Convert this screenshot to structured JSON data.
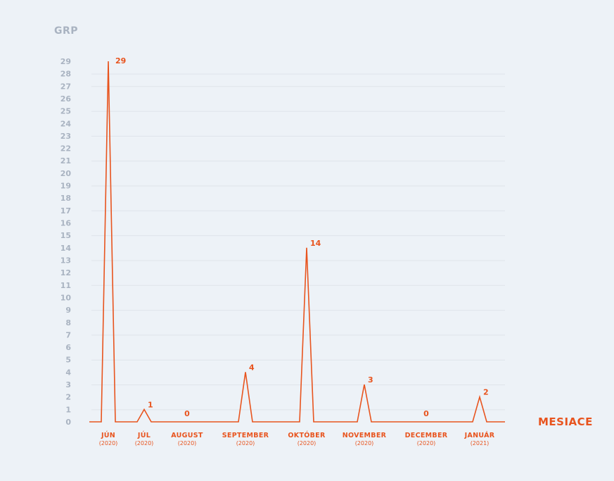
{
  "chart_data": {
    "type": "line",
    "ylabel": "GRP",
    "xlabel": "MESIACE",
    "ylim": [
      0,
      29
    ],
    "yticks": [
      0,
      1,
      2,
      3,
      4,
      5,
      6,
      7,
      8,
      9,
      10,
      11,
      12,
      13,
      14,
      15,
      16,
      17,
      18,
      19,
      20,
      21,
      22,
      23,
      24,
      25,
      26,
      27,
      28,
      29
    ],
    "grid": true,
    "categories": [
      {
        "label": "JÚN",
        "sub": "(2020)"
      },
      {
        "label": "JÚL",
        "sub": "(2020)"
      },
      {
        "label": "AUGUST",
        "sub": "(2020)"
      },
      {
        "label": "SEPTEMBER",
        "sub": "(2020)"
      },
      {
        "label": "OKTÓBER",
        "sub": "(2020)"
      },
      {
        "label": "NOVEMBER",
        "sub": "(2020)"
      },
      {
        "label": "DECEMBER",
        "sub": "(2020)"
      },
      {
        "label": "JANUÁR",
        "sub": "(2021)"
      }
    ],
    "values": [
      29,
      1,
      0,
      4,
      14,
      3,
      0,
      2
    ],
    "colors": {
      "series": "#e8541e",
      "axis_text": "#a9b3c1",
      "grid": "#dfe4ea"
    }
  }
}
